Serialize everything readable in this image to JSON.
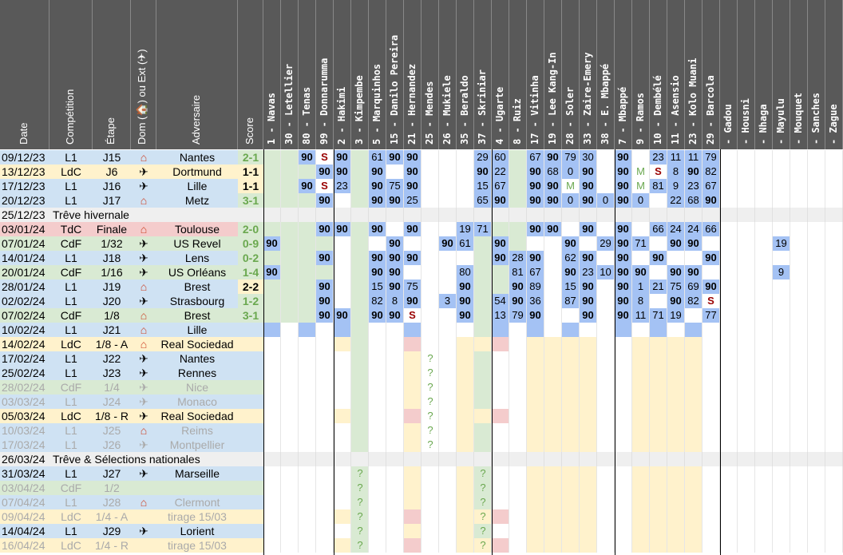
{
  "headers": {
    "date": "Date",
    "competition": "Compétition",
    "etape": "Étape",
    "domext": "Dom (🏠) ou Ext (✈)",
    "adversaire": "Adversaire",
    "score": "Score"
  },
  "players": [
    "1 - Navas",
    "30 - Letellier",
    "80 - Tenas",
    "99 - Donnarumma",
    "2 - Hakimi",
    "3 - Kimpembe",
    "5 - Marquinhos",
    "15 - Danilo Pereira",
    "21 - Hernandez",
    "25 - Mendes",
    "26 - Mukiele",
    "35 - Beraldo",
    "37 - Skriniar",
    "4 - Ugarte",
    "8 - Ruiz",
    "17 - Vitinha",
    "19 - Lee Kang-In",
    "28 - Soler",
    "33 - Zaire-Emery",
    "38 - E. Mbappé",
    "7 - Mbappé",
    "9 - Ramos",
    "10 - Dembélé",
    "11 - Asensio",
    "23 - Kolo Muani",
    "29 - Barcola",
    "- Gadou",
    "- Housni",
    "- Nhaga",
    "- Mayulu",
    "- Mouquet",
    "- Sanches",
    "- Zague"
  ],
  "icons": {
    "home": "home-icon",
    "away": "plane-icon"
  },
  "matches": [
    {
      "date": "09/12/23",
      "comp": "L1",
      "etape": "J15",
      "lieu": "home",
      "adv": "Nantes",
      "score": "2-1",
      "res": "W",
      "cells": [
        "",
        "",
        "90",
        "S",
        "90",
        "",
        "61",
        "90",
        "90",
        "",
        "",
        "",
        "29",
        "60",
        "",
        "67",
        "90",
        "79",
        "30",
        "",
        "90",
        "",
        "23",
        "11",
        "11",
        "79",
        "",
        "",
        "",
        "",
        "",
        "",
        ""
      ]
    },
    {
      "date": "13/12/23",
      "comp": "LdC",
      "etape": "J6",
      "lieu": "away",
      "adv": "Dortmund",
      "score": "1-1",
      "res": "D",
      "cells": [
        "",
        "",
        "",
        "90",
        "90",
        "",
        "90",
        "",
        "90",
        "",
        "",
        "",
        "90",
        "22",
        "",
        "90",
        "68",
        "0",
        "90",
        "",
        "90",
        "M",
        "S",
        "8",
        "90",
        "82",
        "",
        "",
        "",
        "",
        "",
        "",
        ""
      ]
    },
    {
      "date": "17/12/23",
      "comp": "L1",
      "etape": "J16",
      "lieu": "away",
      "adv": "Lille",
      "score": "1-1",
      "res": "D",
      "cells": [
        "",
        "",
        "90",
        "S",
        "23",
        "",
        "90",
        "75",
        "90",
        "",
        "",
        "",
        "15",
        "67",
        "",
        "90",
        "90",
        "M",
        "90",
        "",
        "90",
        "M",
        "81",
        "9",
        "23",
        "67",
        "",
        "",
        "",
        "",
        "",
        "",
        ""
      ]
    },
    {
      "date": "20/12/23",
      "comp": "L1",
      "etape": "J17",
      "lieu": "home",
      "adv": "Metz",
      "score": "3-1",
      "res": "W",
      "cells": [
        "",
        "",
        "",
        "90",
        "",
        "",
        "90",
        "90",
        "25",
        "",
        "",
        "",
        "65",
        "90",
        "",
        "90",
        "90",
        "0",
        "90",
        "0",
        "90",
        "0",
        "",
        "22",
        "68",
        "90",
        "",
        "",
        "",
        "",
        "",
        "",
        ""
      ]
    },
    {
      "date": "25/12/23",
      "comp": "Trêve hivernale",
      "etape": "",
      "lieu": "",
      "adv": "",
      "score": "",
      "res": "break",
      "cells": []
    },
    {
      "date": "03/01/24",
      "comp": "TdC",
      "etape": "Finale",
      "lieu": "home",
      "adv": "Toulouse",
      "score": "2-0",
      "res": "W",
      "cells": [
        "",
        "",
        "",
        "90",
        "90",
        "",
        "90",
        "",
        "90",
        "",
        "",
        "19",
        "71",
        "",
        "",
        "90",
        "90",
        "",
        "90",
        "",
        "90",
        "",
        "66",
        "24",
        "24",
        "66",
        "",
        "",
        "",
        "",
        "",
        "",
        ""
      ]
    },
    {
      "date": "07/01/24",
      "comp": "CdF",
      "etape": "1/32",
      "lieu": "away",
      "adv": "US Revel",
      "score": "0-9",
      "res": "W",
      "cells": [
        "90",
        "",
        "",
        "",
        "",
        "",
        "",
        "90",
        "",
        "",
        "90",
        "61",
        "",
        "90",
        "",
        "",
        "",
        "90",
        "",
        "29",
        "90",
        "71",
        "",
        "90",
        "90",
        "",
        "",
        "",
        "",
        "19",
        "",
        "",
        ""
      ]
    },
    {
      "date": "14/01/24",
      "comp": "L1",
      "etape": "J18",
      "lieu": "away",
      "adv": "Lens",
      "score": "0-2",
      "res": "W",
      "cells": [
        "",
        "",
        "",
        "90",
        "",
        "",
        "90",
        "90",
        "90",
        "",
        "",
        "",
        "",
        "90",
        "28",
        "90",
        "",
        "62",
        "90",
        "",
        "90",
        "",
        "90",
        "",
        "",
        "90",
        "",
        "",
        "",
        "",
        "",
        "",
        ""
      ]
    },
    {
      "date": "20/01/24",
      "comp": "CdF",
      "etape": "1/16",
      "lieu": "away",
      "adv": "US Orléans",
      "score": "1-4",
      "res": "W",
      "cells": [
        "90",
        "",
        "",
        "",
        "",
        "",
        "90",
        "90",
        "",
        "",
        "",
        "80",
        "",
        "",
        "81",
        "67",
        "",
        "90",
        "23",
        "10",
        "90",
        "90",
        "",
        "90",
        "90",
        "",
        "",
        "",
        "",
        "9",
        "",
        "",
        ""
      ]
    },
    {
      "date": "28/01/24",
      "comp": "L1",
      "etape": "J19",
      "lieu": "home",
      "adv": "Brest",
      "score": "2-2",
      "res": "D",
      "cells": [
        "",
        "",
        "",
        "90",
        "",
        "",
        "15",
        "90",
        "75",
        "",
        "",
        "90",
        "",
        "",
        "90",
        "89",
        "",
        "15",
        "90",
        "",
        "90",
        "1",
        "21",
        "75",
        "69",
        "90",
        "",
        "",
        "",
        "",
        "",
        "",
        ""
      ]
    },
    {
      "date": "02/02/24",
      "comp": "L1",
      "etape": "J20",
      "lieu": "away",
      "adv": "Strasbourg",
      "score": "1-2",
      "res": "W",
      "cells": [
        "",
        "",
        "",
        "90",
        "",
        "",
        "82",
        "8",
        "90",
        "",
        "3",
        "90",
        "",
        "54",
        "90",
        "36",
        "",
        "87",
        "90",
        "",
        "90",
        "8",
        "",
        "90",
        "82",
        "S",
        "",
        "",
        "",
        "",
        "",
        "",
        ""
      ]
    },
    {
      "date": "07/02/24",
      "comp": "CdF",
      "etape": "1/8",
      "lieu": "home",
      "adv": "Brest",
      "score": "3-1",
      "res": "W",
      "cells": [
        "",
        "",
        "",
        "90",
        "90",
        "",
        "90",
        "90",
        "S",
        "",
        "",
        "90",
        "",
        "13",
        "79",
        "90",
        "",
        "",
        "90",
        "",
        "90",
        "11",
        "71",
        "19",
        "",
        "77",
        "",
        "",
        "",
        "",
        "",
        "",
        ""
      ]
    },
    {
      "date": "10/02/24",
      "comp": "L1",
      "etape": "J21",
      "lieu": "home",
      "adv": "Lille",
      "score": "",
      "res": "",
      "cells": []
    },
    {
      "date": "14/02/24",
      "comp": "LdC",
      "etape": "1/8 - A",
      "lieu": "home",
      "adv": "Real Sociedad",
      "score": "",
      "res": "",
      "cells": []
    },
    {
      "date": "17/02/24",
      "comp": "L1",
      "etape": "J22",
      "lieu": "away",
      "adv": "Nantes",
      "score": "",
      "res": "",
      "cells": []
    },
    {
      "date": "25/02/24",
      "comp": "L1",
      "etape": "J23",
      "lieu": "away",
      "adv": "Rennes",
      "score": "",
      "res": "",
      "cells": []
    },
    {
      "date": "28/02/24",
      "comp": "CdF",
      "etape": "1/4",
      "lieu": "away",
      "adv": "Nice",
      "score": "",
      "res": "",
      "dim": true,
      "cells": []
    },
    {
      "date": "03/03/24",
      "comp": "L1",
      "etape": "J24",
      "lieu": "away",
      "adv": "Monaco",
      "score": "",
      "res": "",
      "dim": true,
      "cells": []
    },
    {
      "date": "05/03/24",
      "comp": "LdC",
      "etape": "1/8 - R",
      "lieu": "away",
      "adv": "Real Sociedad",
      "score": "",
      "res": "",
      "cells": []
    },
    {
      "date": "10/03/24",
      "comp": "L1",
      "etape": "J25",
      "lieu": "home",
      "adv": "Reims",
      "score": "",
      "res": "",
      "dim": true,
      "cells": []
    },
    {
      "date": "17/03/24",
      "comp": "L1",
      "etape": "J26",
      "lieu": "away",
      "adv": "Montpellier",
      "score": "",
      "res": "",
      "dim": true,
      "cells": []
    },
    {
      "date": "26/03/24",
      "comp": "Trêve & Sélections nationales",
      "etape": "",
      "lieu": "",
      "adv": "",
      "score": "",
      "res": "break",
      "cells": []
    },
    {
      "date": "31/03/24",
      "comp": "L1",
      "etape": "J27",
      "lieu": "away",
      "adv": "Marseille",
      "score": "",
      "res": "",
      "cells": []
    },
    {
      "date": "03/04/24",
      "comp": "CdF",
      "etape": "1/2",
      "lieu": "",
      "adv": "",
      "score": "",
      "res": "",
      "dim": true,
      "cells": []
    },
    {
      "date": "07/04/24",
      "comp": "L1",
      "etape": "J28",
      "lieu": "home",
      "adv": "Clermont",
      "score": "",
      "res": "",
      "dim": true,
      "cells": []
    },
    {
      "date": "09/04/24",
      "comp": "LdC",
      "etape": "1/4 - A",
      "lieu": "",
      "adv": "tirage 15/03",
      "score": "",
      "res": "",
      "dim": true,
      "cells": []
    },
    {
      "date": "14/04/24",
      "comp": "L1",
      "etape": "J29",
      "lieu": "away",
      "adv": "Lorient",
      "score": "",
      "res": "",
      "cells": []
    },
    {
      "date": "16/04/24",
      "comp": "LdC",
      "etape": "1/4 - R",
      "lieu": "",
      "adv": "tirage 15/03",
      "score": "",
      "res": "",
      "dim": true,
      "cells": []
    }
  ],
  "marks": {
    "q": "?"
  },
  "colors": {
    "header": "#595959",
    "blue": "#a4c2f4",
    "green": "#d9ead3",
    "lightblue": "#cfe2f3",
    "yellow": "#fff2cc",
    "pink": "#f4cccc",
    "grey": "#efefef",
    "win": "#6aa84f",
    "loss": "#cc0000",
    "yellowText": "#f1c232",
    "sText": "#990000",
    "mText": "#6aa84f"
  }
}
